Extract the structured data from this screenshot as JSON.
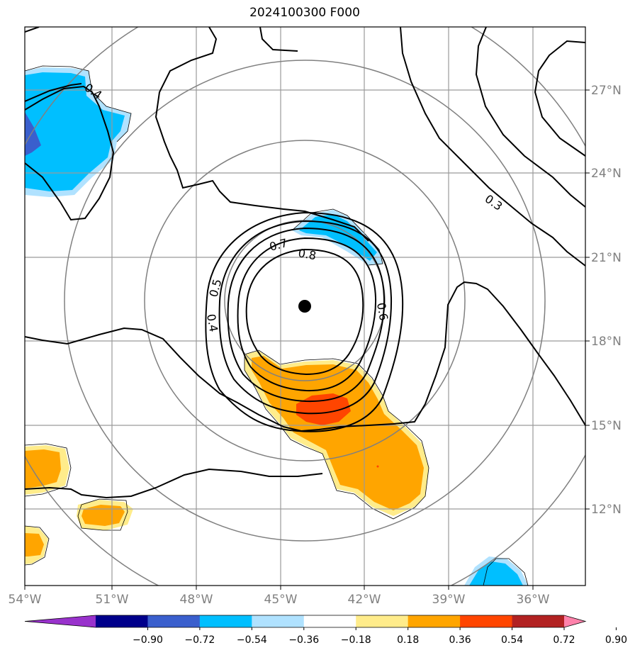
{
  "title": "2024100300 F000",
  "map": {
    "lon_range": [
      -54,
      -34.1
    ],
    "lat_range": [
      9.2,
      29
    ],
    "lon_ticks": [
      "54°W",
      "51°W",
      "48°W",
      "45°W",
      "42°W",
      "39°W",
      "36°W"
    ],
    "lat_ticks": [
      "12°N",
      "15°N",
      "18°N",
      "21°N",
      "24°N",
      "27°N"
    ],
    "grid": true,
    "range_rings": 4,
    "center_marker": {
      "lon": -44.1,
      "lat": 19.2,
      "color": "#000000"
    }
  },
  "contour_labels": [
    "0.4",
    "0.3",
    "0.7",
    "0.8",
    "0.5",
    "0.6",
    "0.4"
  ],
  "colorbar": {
    "ticks": [
      "−0.90",
      "−0.72",
      "−0.54",
      "−0.36",
      "−0.18",
      "0.18",
      "0.36",
      "0.54",
      "0.72",
      "0.90"
    ],
    "colors": [
      "#9932cc",
      "#00008b",
      "#3a5fcd",
      "#00bfff",
      "#b0e2ff",
      "#ffffff",
      "#ffec8b",
      "#ffa500",
      "#ff4500",
      "#b22222",
      "#ff82ab"
    ]
  }
}
